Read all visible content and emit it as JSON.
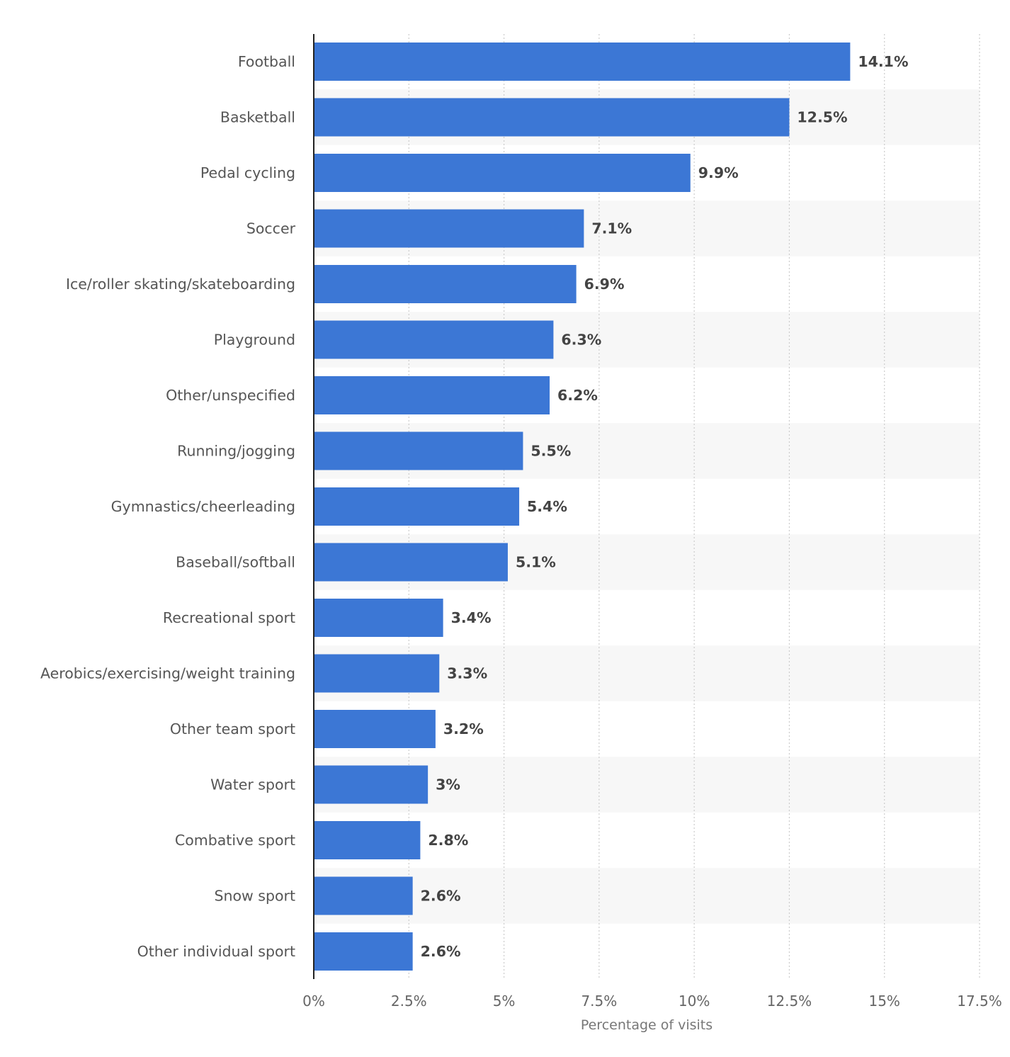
{
  "chart_data": {
    "type": "bar",
    "orientation": "horizontal",
    "categories": [
      "Football",
      "Basketball",
      "Pedal cycling",
      "Soccer",
      "Ice/roller skating/skateboarding",
      "Playground",
      "Other/unspecified",
      "Running/jogging",
      "Gymnastics/cheerleading",
      "Baseball/softball",
      "Recreational sport",
      "Aerobics/exercising/weight training",
      "Other team sport",
      "Water sport",
      "Combative sport",
      "Snow sport",
      "Other individual sport"
    ],
    "values": [
      14.1,
      12.5,
      9.9,
      7.1,
      6.9,
      6.3,
      6.2,
      5.5,
      5.4,
      5.1,
      3.4,
      3.3,
      3.2,
      3,
      2.8,
      2.6,
      2.6
    ],
    "value_labels": [
      "14.1%",
      "12.5%",
      "9.9%",
      "7.1%",
      "6.9%",
      "6.3%",
      "6.2%",
      "5.5%",
      "5.4%",
      "5.1%",
      "3.4%",
      "3.3%",
      "3.2%",
      "3%",
      "2.8%",
      "2.6%",
      "2.6%"
    ],
    "title": "",
    "xlabel": "Percentage of visits",
    "ylabel": "",
    "xlim": [
      0,
      17.5
    ],
    "x_ticks": [
      0,
      2.5,
      5,
      7.5,
      10,
      12.5,
      15,
      17.5
    ],
    "x_tick_labels": [
      "0%",
      "2.5%",
      "5%",
      "7.5%",
      "10%",
      "12.5%",
      "15%",
      "17.5%"
    ],
    "grid": true,
    "legend": "none",
    "colors": {
      "bar": "#3c77d5",
      "band": "#f7f7f7",
      "grid": "#cccccc",
      "axis": "#222222"
    }
  }
}
